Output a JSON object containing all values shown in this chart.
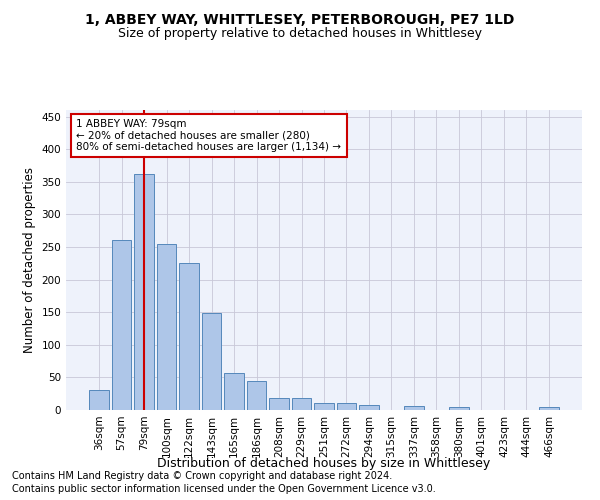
{
  "title": "1, ABBEY WAY, WHITTLESEY, PETERBOROUGH, PE7 1LD",
  "subtitle": "Size of property relative to detached houses in Whittlesey",
  "xlabel": "Distribution of detached houses by size in Whittlesey",
  "ylabel": "Number of detached properties",
  "bar_labels": [
    "36sqm",
    "57sqm",
    "79sqm",
    "100sqm",
    "122sqm",
    "143sqm",
    "165sqm",
    "186sqm",
    "208sqm",
    "229sqm",
    "251sqm",
    "272sqm",
    "294sqm",
    "315sqm",
    "337sqm",
    "358sqm",
    "380sqm",
    "401sqm",
    "423sqm",
    "444sqm",
    "466sqm"
  ],
  "bar_values": [
    30,
    260,
    362,
    255,
    225,
    148,
    57,
    45,
    18,
    18,
    11,
    11,
    7,
    0,
    6,
    0,
    4,
    0,
    0,
    0,
    4
  ],
  "bar_color": "#aec6e8",
  "bar_edge_color": "#5588bb",
  "vline_x": 2,
  "vline_color": "#cc0000",
  "annotation_text": "1 ABBEY WAY: 79sqm\n← 20% of detached houses are smaller (280)\n80% of semi-detached houses are larger (1,134) →",
  "annotation_box_color": "#cc0000",
  "ylim": [
    0,
    460
  ],
  "yticks": [
    0,
    50,
    100,
    150,
    200,
    250,
    300,
    350,
    400,
    450
  ],
  "footer_line1": "Contains HM Land Registry data © Crown copyright and database right 2024.",
  "footer_line2": "Contains public sector information licensed under the Open Government Licence v3.0.",
  "bg_color": "#eef2fb",
  "grid_color": "#c8c8d8",
  "title_fontsize": 10,
  "subtitle_fontsize": 9,
  "axis_label_fontsize": 8.5,
  "tick_fontsize": 7.5,
  "footer_fontsize": 7
}
